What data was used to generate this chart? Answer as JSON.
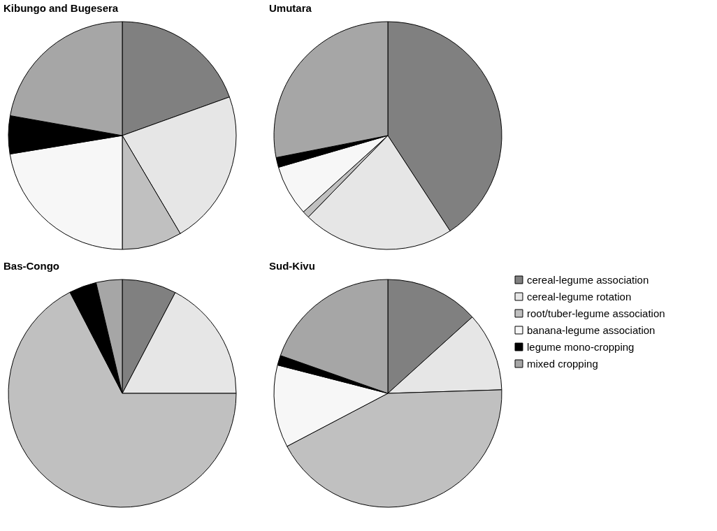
{
  "chart_data": [
    {
      "type": "pie",
      "title": "Kibungo and Bugesera",
      "categories": [
        null,
        null,
        null,
        null,
        null,
        null
      ],
      "values": [
        19.5,
        22,
        8.5,
        22.4,
        5.4,
        22.2
      ],
      "colors": [
        "#808080",
        "#e6e6e6",
        "#c0c0c0",
        "#f7f7f7",
        "#000000",
        "#a6a6a6"
      ]
    },
    {
      "type": "pie",
      "title": "Umutara",
      "categories": [
        null,
        null,
        null,
        null,
        null,
        null
      ],
      "values": [
        40.8,
        21.5,
        1,
        7.2,
        1.4,
        28.1
      ],
      "colors": [
        "#808080",
        "#e6e6e6",
        "#c0c0c0",
        "#f7f7f7",
        "#000000",
        "#a6a6a6"
      ]
    },
    {
      "type": "pie",
      "title": "Bas-Congo",
      "categories": [
        null,
        null,
        null,
        null,
        null
      ],
      "values": [
        7.7,
        17.3,
        67.4,
        3.9,
        3.7
      ],
      "colors": [
        "#808080",
        "#e6e6e6",
        "#c0c0c0",
        "#000000",
        "#a6a6a6"
      ]
    },
    {
      "type": "pie",
      "title": "Sud-Kivu",
      "categories": [
        "cereal-legume association",
        "cereal-legume rotation",
        "root/tuber-legume association",
        "banana-legume association",
        "legume mono-cropping",
        "mixed cropping"
      ],
      "values": [
        13.3,
        11.2,
        42.8,
        11.7,
        1.4,
        19.6
      ],
      "colors": [
        "#808080",
        "#e6e6e6",
        "#c0c0c0",
        "#f7f7f7",
        "#000000",
        "#a6a6a6"
      ],
      "legend": "right"
    }
  ]
}
